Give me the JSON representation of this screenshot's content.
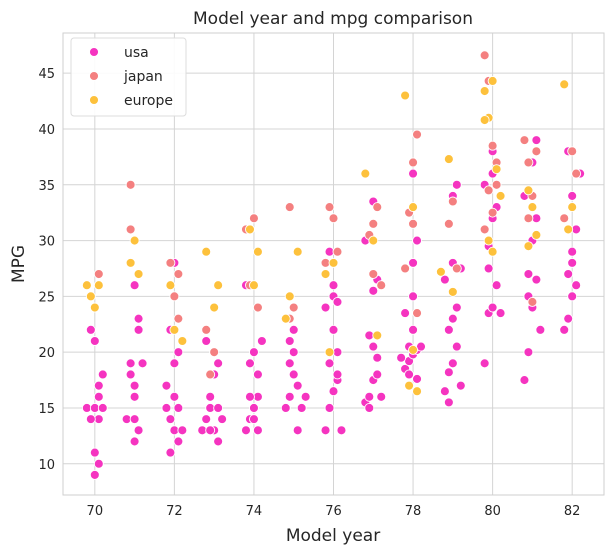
{
  "chart_data": {
    "type": "scatter",
    "title": "Model year and mpg comparison",
    "xlabel": "Model year",
    "ylabel": "MPG",
    "xlim": [
      69.2,
      82.8
    ],
    "ylim": [
      7.2,
      48.6
    ],
    "xticks": [
      70,
      72,
      74,
      76,
      78,
      80,
      82
    ],
    "yticks": [
      10,
      15,
      20,
      25,
      30,
      35,
      40,
      45
    ],
    "grid": true,
    "legend_position": "top-left",
    "series": [
      {
        "name": "usa",
        "color": "#f534c0",
        "points": [
          [
            69.8,
            15
          ],
          [
            69.9,
            22
          ],
          [
            70.0,
            9
          ],
          [
            70.1,
            10
          ],
          [
            70.0,
            11
          ],
          [
            70.1,
            14
          ],
          [
            69.9,
            14
          ],
          [
            70.0,
            15
          ],
          [
            70.2,
            18
          ],
          [
            70.1,
            16
          ],
          [
            70.2,
            15
          ],
          [
            70.0,
            21
          ],
          [
            70.1,
            17
          ],
          [
            70.8,
            14
          ],
          [
            70.9,
            19
          ],
          [
            71.0,
            17
          ],
          [
            70.9,
            18
          ],
          [
            71.0,
            12
          ],
          [
            71.1,
            13
          ],
          [
            71.0,
            14
          ],
          [
            71.2,
            19
          ],
          [
            71.0,
            16
          ],
          [
            71.1,
            22
          ],
          [
            71.0,
            26
          ],
          [
            71.1,
            23
          ],
          [
            70.9,
            28
          ],
          [
            71.8,
            15
          ],
          [
            71.9,
            14
          ],
          [
            72.0,
            13
          ],
          [
            72.1,
            12
          ],
          [
            71.9,
            11
          ],
          [
            72.0,
            13
          ],
          [
            71.8,
            17
          ],
          [
            72.0,
            19
          ],
          [
            72.1,
            20
          ],
          [
            72.0,
            16
          ],
          [
            72.2,
            13
          ],
          [
            71.9,
            22
          ],
          [
            72.0,
            28
          ],
          [
            72.1,
            15
          ],
          [
            72.7,
            13
          ],
          [
            72.8,
            14
          ],
          [
            72.9,
            15
          ],
          [
            73.0,
            13
          ],
          [
            73.1,
            12
          ],
          [
            72.9,
            16
          ],
          [
            73.0,
            18
          ],
          [
            73.1,
            19
          ],
          [
            72.8,
            21
          ],
          [
            73.0,
            20
          ],
          [
            73.1,
            15
          ],
          [
            73.2,
            14
          ],
          [
            72.9,
            13
          ],
          [
            73.0,
            18
          ],
          [
            73.8,
            13
          ],
          [
            73.9,
            14
          ],
          [
            74.0,
            15
          ],
          [
            74.1,
            16
          ],
          [
            73.9,
            19
          ],
          [
            74.0,
            20
          ],
          [
            74.1,
            18
          ],
          [
            74.2,
            21
          ],
          [
            73.8,
            26
          ],
          [
            74.0,
            14
          ],
          [
            74.1,
            13
          ],
          [
            73.9,
            16
          ],
          [
            74.8,
            15
          ],
          [
            74.9,
            16
          ],
          [
            75.0,
            18
          ],
          [
            75.1,
            17
          ],
          [
            74.9,
            19
          ],
          [
            75.0,
            22
          ],
          [
            75.2,
            15
          ],
          [
            75.1,
            13
          ],
          [
            74.9,
            21
          ],
          [
            75.0,
            20
          ],
          [
            75.3,
            16
          ],
          [
            74.9,
            23
          ],
          [
            75.8,
            13
          ],
          [
            75.9,
            15
          ],
          [
            76.0,
            16.5
          ],
          [
            76.1,
            17.5
          ],
          [
            75.9,
            19
          ],
          [
            76.0,
            22
          ],
          [
            76.1,
            20
          ],
          [
            75.8,
            24
          ],
          [
            76.0,
            26
          ],
          [
            76.2,
            13
          ],
          [
            76.1,
            18
          ],
          [
            75.9,
            29
          ],
          [
            76.0,
            25
          ],
          [
            76.1,
            24.5
          ],
          [
            76.8,
            15.5
          ],
          [
            76.9,
            16
          ],
          [
            77.0,
            17.5
          ],
          [
            77.1,
            19.5
          ],
          [
            76.9,
            21.5
          ],
          [
            77.0,
            25.5
          ],
          [
            77.1,
            26.5
          ],
          [
            76.8,
            30
          ],
          [
            77.0,
            33.5
          ],
          [
            77.2,
            16
          ],
          [
            76.9,
            15
          ],
          [
            77.1,
            18
          ],
          [
            77.0,
            20.5
          ],
          [
            77.8,
            18.5
          ],
          [
            77.9,
            19.2
          ],
          [
            78.0,
            19.8
          ],
          [
            78.1,
            20.2
          ],
          [
            77.9,
            20.5
          ],
          [
            78.0,
            22
          ],
          [
            78.1,
            17.6
          ],
          [
            77.8,
            23.5
          ],
          [
            78.0,
            25
          ],
          [
            78.2,
            20.5
          ],
          [
            77.9,
            18
          ],
          [
            78.0,
            28
          ],
          [
            78.1,
            30
          ],
          [
            77.7,
            19.5
          ],
          [
            78.0,
            36
          ],
          [
            78.8,
            16.5
          ],
          [
            78.9,
            18.2
          ],
          [
            79.0,
            19
          ],
          [
            79.1,
            20.5
          ],
          [
            78.9,
            22
          ],
          [
            79.0,
            23
          ],
          [
            79.1,
            24
          ],
          [
            78.8,
            26.5
          ],
          [
            79.0,
            28
          ],
          [
            79.2,
            17
          ],
          [
            78.9,
            31.5
          ],
          [
            79.0,
            34
          ],
          [
            79.1,
            35
          ],
          [
            79.2,
            27.5
          ],
          [
            78.9,
            15.5
          ],
          [
            79.8,
            19
          ],
          [
            79.9,
            23.5
          ],
          [
            80.0,
            24
          ],
          [
            80.1,
            26
          ],
          [
            79.9,
            27.5
          ],
          [
            80.0,
            32
          ],
          [
            80.1,
            33
          ],
          [
            79.8,
            35
          ],
          [
            80.0,
            38
          ],
          [
            80.2,
            23.5
          ],
          [
            79.9,
            29.5
          ],
          [
            80.0,
            36
          ],
          [
            80.8,
            17.5
          ],
          [
            80.9,
            20
          ],
          [
            81.0,
            24
          ],
          [
            81.1,
            26.5
          ],
          [
            80.9,
            27
          ],
          [
            81.0,
            30
          ],
          [
            81.1,
            32
          ],
          [
            80.8,
            34
          ],
          [
            81.0,
            37
          ],
          [
            81.2,
            22
          ],
          [
            80.9,
            25
          ],
          [
            81.1,
            39
          ],
          [
            81.8,
            22
          ],
          [
            81.9,
            23
          ],
          [
            82.0,
            25
          ],
          [
            82.1,
            26
          ],
          [
            81.9,
            27
          ],
          [
            82.0,
            28
          ],
          [
            82.1,
            31
          ],
          [
            81.8,
            32
          ],
          [
            82.0,
            34
          ],
          [
            82.2,
            36
          ],
          [
            81.9,
            38
          ],
          [
            82.0,
            29
          ]
        ]
      },
      {
        "name": "japan",
        "color": "#f48080",
        "points": [
          [
            70.1,
            27
          ],
          [
            70.0,
            24
          ],
          [
            70.9,
            31
          ],
          [
            70.9,
            35
          ],
          [
            71.1,
            27
          ],
          [
            71.9,
            28
          ],
          [
            72.1,
            27
          ],
          [
            72.0,
            25
          ],
          [
            72.1,
            23
          ],
          [
            72.9,
            18
          ],
          [
            73.0,
            20
          ],
          [
            72.8,
            22
          ],
          [
            73.8,
            31
          ],
          [
            74.0,
            32
          ],
          [
            73.9,
            26
          ],
          [
            74.1,
            24
          ],
          [
            74.9,
            33
          ],
          [
            74.9,
            23
          ],
          [
            75.0,
            24
          ],
          [
            75.9,
            33
          ],
          [
            75.8,
            28
          ],
          [
            76.0,
            32
          ],
          [
            76.1,
            29
          ],
          [
            76.9,
            30.5
          ],
          [
            77.0,
            31.5
          ],
          [
            77.2,
            26
          ],
          [
            77.1,
            33
          ],
          [
            77.0,
            27
          ],
          [
            77.9,
            32.5
          ],
          [
            78.0,
            37
          ],
          [
            78.1,
            39.5
          ],
          [
            77.8,
            27.5
          ],
          [
            78.0,
            31.5
          ],
          [
            78.1,
            23.5
          ],
          [
            78.9,
            31.5
          ],
          [
            79.0,
            33.5
          ],
          [
            79.1,
            27.5
          ],
          [
            79.8,
            46.6
          ],
          [
            79.9,
            44.3
          ],
          [
            80.0,
            38.5
          ],
          [
            80.1,
            37
          ],
          [
            79.9,
            34.5
          ],
          [
            80.0,
            32.5
          ],
          [
            80.1,
            35
          ],
          [
            79.8,
            31
          ],
          [
            80.8,
            39
          ],
          [
            80.9,
            37
          ],
          [
            81.0,
            34
          ],
          [
            80.9,
            32
          ],
          [
            81.1,
            38
          ],
          [
            81.0,
            24.5
          ],
          [
            81.8,
            32
          ],
          [
            82.0,
            38
          ],
          [
            82.1,
            36
          ]
        ]
      },
      {
        "name": "europe",
        "color": "#fdc13c",
        "points": [
          [
            69.8,
            26
          ],
          [
            69.9,
            25
          ],
          [
            70.0,
            24
          ],
          [
            70.1,
            26
          ],
          [
            70.9,
            28
          ],
          [
            71.0,
            30
          ],
          [
            71.1,
            27
          ],
          [
            71.9,
            26
          ],
          [
            72.0,
            22
          ],
          [
            72.2,
            21
          ],
          [
            72.8,
            29
          ],
          [
            73.0,
            24
          ],
          [
            73.1,
            26
          ],
          [
            73.9,
            31
          ],
          [
            74.1,
            29
          ],
          [
            74.0,
            26
          ],
          [
            74.8,
            23
          ],
          [
            74.9,
            25
          ],
          [
            75.1,
            29
          ],
          [
            75.8,
            27
          ],
          [
            75.9,
            20
          ],
          [
            76.0,
            28
          ],
          [
            76.8,
            36
          ],
          [
            77.0,
            30
          ],
          [
            77.1,
            21.5
          ],
          [
            77.9,
            17
          ],
          [
            78.0,
            20.2
          ],
          [
            78.1,
            16.5
          ],
          [
            77.8,
            43
          ],
          [
            78.0,
            33
          ],
          [
            78.7,
            27.2
          ],
          [
            78.9,
            37.3
          ],
          [
            79.0,
            25.4
          ],
          [
            79.8,
            43.4
          ],
          [
            79.9,
            41
          ],
          [
            80.0,
            44.3
          ],
          [
            80.1,
            36.4
          ],
          [
            79.9,
            30
          ],
          [
            80.0,
            29
          ],
          [
            80.2,
            34
          ],
          [
            79.8,
            40.8
          ],
          [
            80.9,
            34.5
          ],
          [
            81.0,
            33
          ],
          [
            81.1,
            30.5
          ],
          [
            80.9,
            29.5
          ],
          [
            81.8,
            44
          ],
          [
            81.9,
            31
          ],
          [
            82.0,
            33
          ]
        ]
      }
    ]
  }
}
